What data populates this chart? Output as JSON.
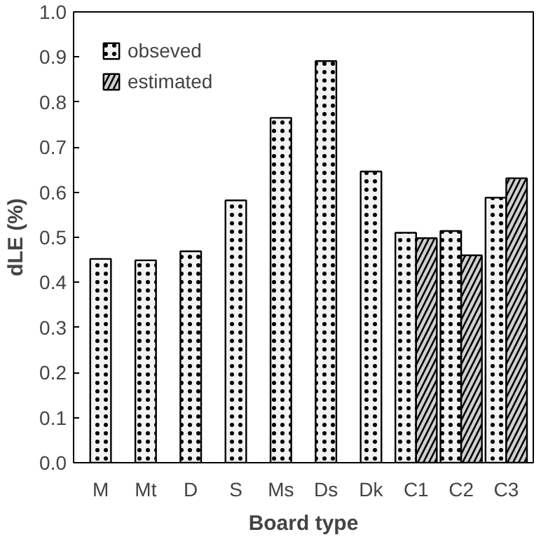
{
  "chart_data": {
    "type": "bar",
    "xlabel": "Board type",
    "ylabel": "dLE (%)",
    "categories": [
      "M",
      "Mt",
      "D",
      "S",
      "Ms",
      "Ds",
      "Dk",
      "C1",
      "C2",
      "C3"
    ],
    "series": [
      {
        "name": "obseved",
        "color": "#f2f2f2",
        "values": [
          0.452,
          0.449,
          0.469,
          0.582,
          0.765,
          0.891,
          0.646,
          0.51,
          0.514,
          0.588
        ]
      },
      {
        "name": "estimated",
        "color": "#d0d0d0",
        "values": [
          null,
          null,
          null,
          null,
          null,
          null,
          null,
          0.498,
          0.46,
          0.631
        ]
      }
    ],
    "ylim": [
      0,
      1.0
    ],
    "yticks": [
      {
        "value": 0,
        "label": "0.0"
      },
      0.1,
      0.2,
      0.3,
      0.4,
      0.5,
      0.6,
      0.7,
      0.8,
      0.9,
      {
        "value": 1.0,
        "label": "1.0"
      }
    ],
    "grid": false,
    "legend": "top left"
  }
}
